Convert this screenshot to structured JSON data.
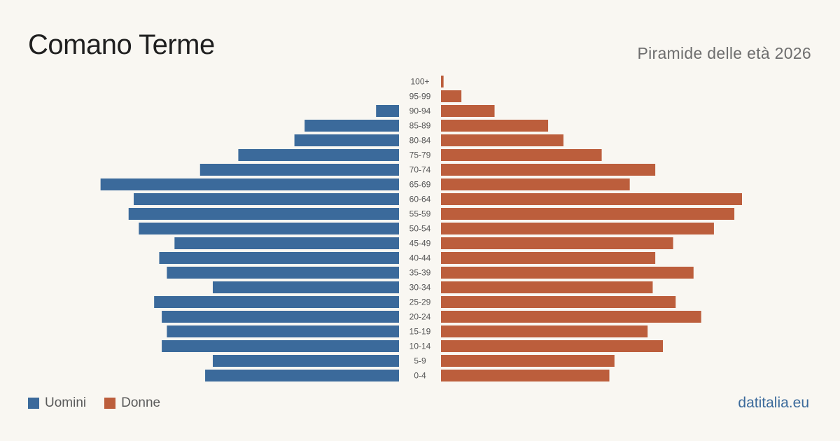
{
  "header": {
    "title": "Comano Terme",
    "subtitle": "Piramide delle età 2026"
  },
  "legend": {
    "men_label": "Uomini",
    "women_label": "Donne"
  },
  "brand": "datitalia.eu",
  "colors": {
    "men": "#3b6a9b",
    "women": "#bc5e3c",
    "background": "#f9f7f2",
    "age_label": "#555555"
  },
  "chart_data": {
    "type": "bar",
    "orientation": "horizontal-pyramid",
    "categories": [
      "100+",
      "95-99",
      "90-94",
      "85-89",
      "80-84",
      "75-79",
      "70-74",
      "65-69",
      "60-64",
      "55-59",
      "50-54",
      "45-49",
      "40-44",
      "35-39",
      "30-34",
      "25-29",
      "20-24",
      "15-19",
      "10-14",
      "5-9",
      "0-4"
    ],
    "series": [
      {
        "name": "Uomini",
        "values": [
          0,
          0,
          9,
          37,
          41,
          63,
          78,
          117,
          104,
          106,
          102,
          88,
          94,
          91,
          73,
          96,
          93,
          91,
          93,
          73,
          76
        ]
      },
      {
        "name": "Donne",
        "values": [
          1,
          8,
          21,
          42,
          48,
          63,
          84,
          74,
          118,
          115,
          107,
          91,
          84,
          99,
          83,
          92,
          102,
          81,
          87,
          68,
          66
        ]
      }
    ],
    "xlim": [
      0,
      118
    ]
  }
}
